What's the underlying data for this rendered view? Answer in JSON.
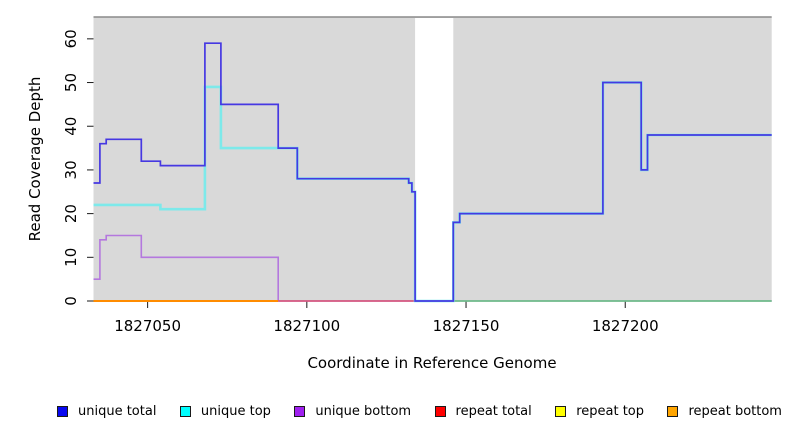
{
  "chart_data": {
    "type": "line",
    "subtype": "step-coverage",
    "title": "",
    "xlabel": "Coordinate in Reference Genome",
    "ylabel": "Read Coverage Depth",
    "xlim": [
      1827033,
      1827246
    ],
    "ylim": [
      0,
      65
    ],
    "x_ticks": [
      1827050,
      1827100,
      1827150,
      1827200
    ],
    "y_ticks": [
      0,
      10,
      20,
      30,
      40,
      50,
      60
    ],
    "grid": false,
    "plot_bg": "#d9d9d9",
    "border_color": "#8a8a8a",
    "gap": {
      "x0": 1827134,
      "x1": 1827146,
      "color": "#ffffff",
      "note": "white no-data gap"
    },
    "series": [
      {
        "name": "unique bottom",
        "color": "#b478de",
        "width": 1.6,
        "points": [
          [
            1827033,
            5
          ],
          [
            1827035,
            14
          ],
          [
            1827037,
            15
          ],
          [
            1827048,
            10
          ],
          [
            1827091,
            0
          ],
          [
            1827246,
            0
          ]
        ]
      },
      {
        "name": "repeat bottom",
        "color": "#ff8c00",
        "width": 2,
        "points": [
          [
            1827033,
            0
          ],
          [
            1827091,
            0
          ]
        ]
      },
      {
        "name": "repeat total",
        "color": "#d95070",
        "width": 1.6,
        "points": [
          [
            1827091,
            0
          ],
          [
            1827134,
            0
          ]
        ]
      },
      {
        "name": "green baseline",
        "color": "#62c47c",
        "width": 1.6,
        "points": [
          [
            1827146,
            0
          ],
          [
            1827246,
            0
          ]
        ]
      },
      {
        "name": "unique top",
        "color": "#7de9ea",
        "width": 2.6,
        "points": [
          [
            1827033,
            22
          ],
          [
            1827054,
            21
          ],
          [
            1827068,
            49
          ],
          [
            1827073,
            35
          ],
          [
            1827097,
            28
          ],
          [
            1827132,
            27
          ],
          [
            1827133,
            25
          ],
          [
            1827134,
            0
          ],
          [
            1827146,
            18
          ],
          [
            1827148,
            20
          ],
          [
            1827193,
            50
          ],
          [
            1827205,
            30
          ],
          [
            1827207,
            38
          ],
          [
            1827246,
            38
          ]
        ]
      },
      {
        "name": "unique total",
        "color": "#4638e2",
        "width": 1.7,
        "points": [
          [
            1827033,
            27
          ],
          [
            1827035,
            36
          ],
          [
            1827037,
            37
          ],
          [
            1827048,
            32
          ],
          [
            1827054,
            31
          ],
          [
            1827068,
            59
          ],
          [
            1827073,
            45
          ],
          [
            1827091,
            35
          ],
          [
            1827097,
            28
          ],
          [
            1827132,
            27
          ],
          [
            1827133,
            25
          ],
          [
            1827134,
            0
          ],
          [
            1827146,
            18
          ],
          [
            1827148,
            20
          ],
          [
            1827193,
            50
          ],
          [
            1827205,
            30
          ],
          [
            1827207,
            38
          ],
          [
            1827246,
            38
          ]
        ]
      }
    ],
    "legend_position": "bottom",
    "legend": [
      {
        "label": "unique total",
        "color": "#0808f0"
      },
      {
        "label": "unique top",
        "color": "#00ffff"
      },
      {
        "label": "unique bottom",
        "color": "#a020f0"
      },
      {
        "label": "repeat total",
        "color": "#ff0000"
      },
      {
        "label": "repeat top",
        "color": "#ffff00"
      },
      {
        "label": "repeat bottom",
        "color": "#ffa500"
      }
    ]
  }
}
